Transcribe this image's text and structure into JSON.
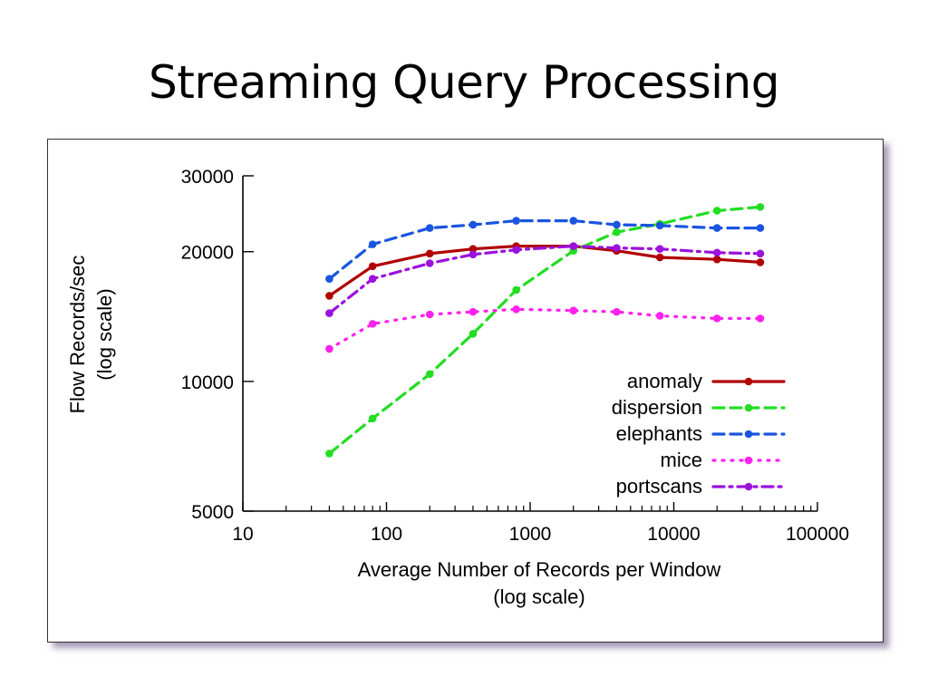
{
  "slide": {
    "title": "Streaming Query Processing"
  },
  "chart_data": {
    "type": "line",
    "title": "",
    "xlabel": [
      "Average Number of Records per Window",
      "(log scale)"
    ],
    "ylabel": [
      "Flow Records/sec",
      "(log scale)"
    ],
    "x_scale": "log",
    "y_scale": "log",
    "xlim": [
      10,
      100000
    ],
    "ylim": [
      5000,
      30000
    ],
    "x_ticks": [
      "10",
      "100",
      "1000",
      "10000",
      "100000"
    ],
    "y_ticks": [
      "5000",
      "10000",
      "20000",
      "30000"
    ],
    "grid": false,
    "legend_position": "bottom-right",
    "x": [
      40,
      80,
      200,
      400,
      800,
      2000,
      4000,
      8000,
      20000,
      40000
    ],
    "series": [
      {
        "name": "anomaly",
        "color": "#b00000",
        "style": "solid",
        "values": [
          15800,
          18500,
          19800,
          20300,
          20600,
          20600,
          20100,
          19400,
          19200,
          18900
        ]
      },
      {
        "name": "dispersion",
        "color": "#22dd22",
        "style": "dashed",
        "values": [
          6800,
          8200,
          10400,
          12900,
          16300,
          20100,
          22200,
          23200,
          24900,
          25400
        ]
      },
      {
        "name": "elephants",
        "color": "#1a55e0",
        "style": "dashed",
        "values": [
          17300,
          20800,
          22700,
          23100,
          23600,
          23600,
          23100,
          23000,
          22700,
          22700
        ]
      },
      {
        "name": "mice",
        "color": "#ff22ee",
        "style": "dotted",
        "values": [
          11900,
          13600,
          14300,
          14500,
          14700,
          14600,
          14500,
          14200,
          14000,
          14000
        ]
      },
      {
        "name": "portscans",
        "color": "#9b11dd",
        "style": "dashdot",
        "values": [
          14400,
          17300,
          18800,
          19700,
          20200,
          20600,
          20400,
          20300,
          19900,
          19800
        ]
      }
    ]
  }
}
